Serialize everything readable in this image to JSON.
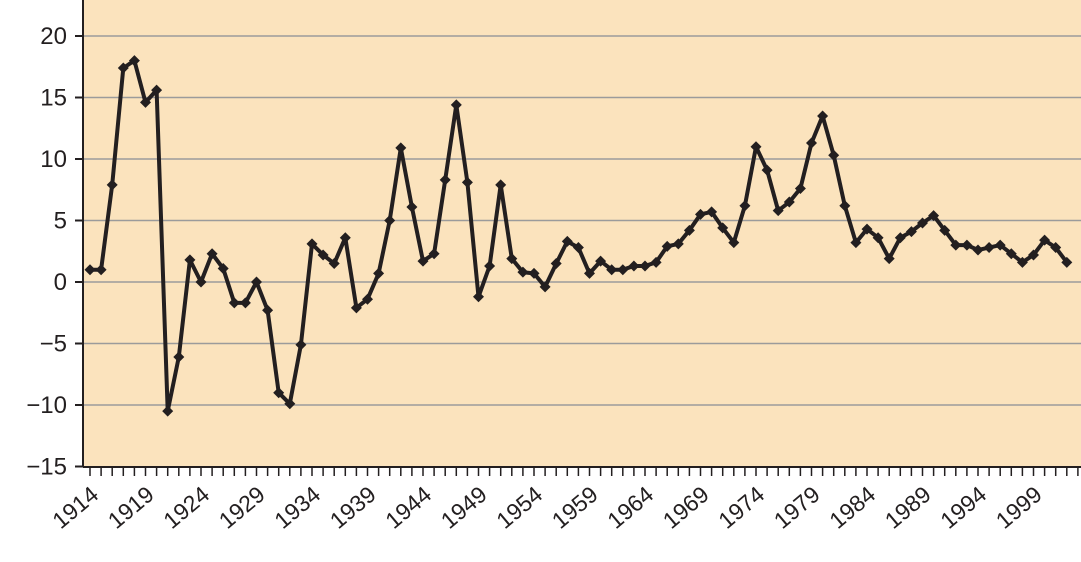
{
  "chart_data": {
    "type": "line",
    "title": "",
    "xlabel": "",
    "ylabel": "",
    "ylim": [
      -15,
      20
    ],
    "yticks": [
      -15,
      -10,
      -5,
      0,
      5,
      10,
      15,
      20
    ],
    "xlim": [
      1914,
      2003
    ],
    "xtick_labels": [
      "1914",
      "1919",
      "1924",
      "1929",
      "1934",
      "1939",
      "1944",
      "1949",
      "1954",
      "1959",
      "1964",
      "1969",
      "1974",
      "1979",
      "1984",
      "1989",
      "1994",
      "1999"
    ],
    "grid": "horizontal",
    "legend": "none",
    "colors": {
      "plot_background": "#fbe3bd",
      "line": "#231f20",
      "grid": "#9b9b9b"
    },
    "series": [
      {
        "marker": "diamond",
        "x": [
          1914,
          1915,
          1916,
          1917,
          1918,
          1919,
          1920,
          1921,
          1922,
          1923,
          1924,
          1925,
          1926,
          1927,
          1928,
          1929,
          1930,
          1931,
          1932,
          1933,
          1934,
          1935,
          1936,
          1937,
          1938,
          1939,
          1940,
          1941,
          1942,
          1943,
          1944,
          1945,
          1946,
          1947,
          1948,
          1949,
          1950,
          1951,
          1952,
          1953,
          1954,
          1955,
          1956,
          1957,
          1958,
          1959,
          1960,
          1961,
          1962,
          1963,
          1964,
          1965,
          1966,
          1967,
          1968,
          1969,
          1970,
          1971,
          1972,
          1973,
          1974,
          1975,
          1976,
          1977,
          1978,
          1979,
          1980,
          1981,
          1982,
          1983,
          1984,
          1985,
          1986,
          1987,
          1988,
          1989,
          1990,
          1991,
          1992,
          1993,
          1994,
          1995,
          1996,
          1997,
          1998,
          1999,
          2000,
          2001,
          2002
        ],
        "y": [
          1.0,
          1.0,
          7.9,
          17.4,
          18.0,
          14.6,
          15.6,
          -10.5,
          -6.1,
          1.8,
          0.0,
          2.3,
          1.1,
          -1.7,
          -1.7,
          0.0,
          -2.3,
          -9.0,
          -9.9,
          -5.1,
          3.1,
          2.2,
          1.5,
          3.6,
          -2.1,
          -1.4,
          0.7,
          5.0,
          10.9,
          6.1,
          1.7,
          2.3,
          8.3,
          14.4,
          8.1,
          -1.2,
          1.3,
          7.9,
          1.9,
          0.8,
          0.7,
          -0.4,
          1.5,
          3.3,
          2.8,
          0.7,
          1.7,
          1.0,
          1.0,
          1.3,
          1.3,
          1.6,
          2.9,
          3.1,
          4.2,
          5.5,
          5.7,
          4.4,
          3.2,
          6.2,
          11.0,
          9.1,
          5.8,
          6.5,
          7.6,
          11.3,
          13.5,
          10.3,
          6.2,
          3.2,
          4.3,
          3.6,
          1.9,
          3.6,
          4.1,
          4.8,
          5.4,
          4.2,
          3.0,
          3.0,
          2.6,
          2.8,
          3.0,
          2.3,
          1.6,
          2.2,
          3.4,
          2.8,
          1.6
        ]
      }
    ]
  }
}
